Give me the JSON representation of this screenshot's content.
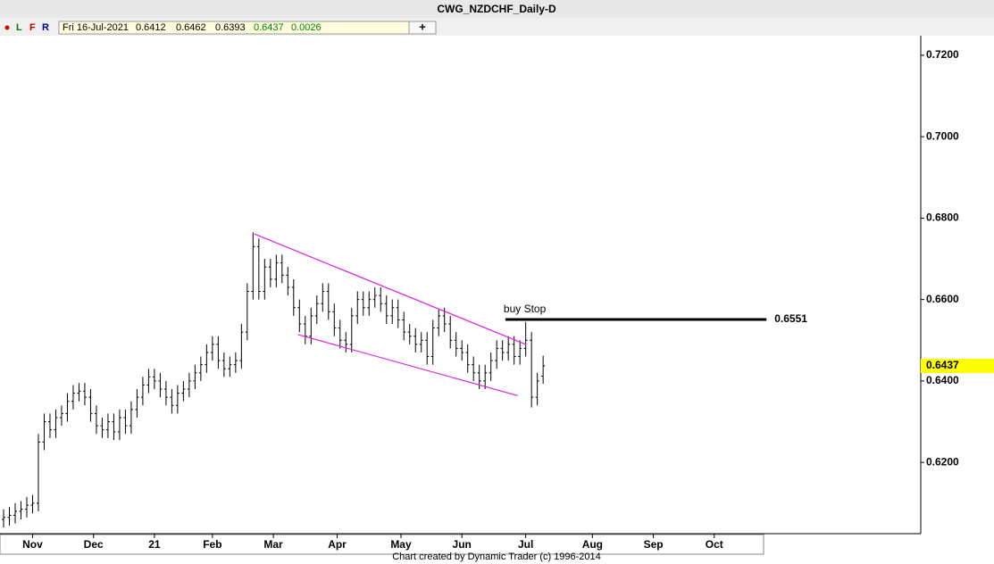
{
  "chart_data": {
    "type": "ohlc",
    "title": "CWG_NZDCHF_Daily-D",
    "toolbar": [
      "L",
      "F",
      "R"
    ],
    "add_button": "+",
    "date": "Fri 16-Jul-2021",
    "change": 0.0026,
    "footer": "Chart created by Dynamic Trader  (c) 1996-2014",
    "color": "#000000",
    "line_color": "#e020e0",
    "xlim": [
      0,
      262
    ],
    "ylim": [
      0.6025,
      0.7248
    ],
    "yticks": [
      {
        "value": 0.72,
        "label": "0.7200"
      },
      {
        "value": 0.7,
        "label": "0.7000"
      },
      {
        "value": 0.68,
        "label": "0.6800"
      },
      {
        "value": 0.66,
        "label": "0.6600"
      },
      {
        "value": 0.64,
        "label": "0.6400"
      },
      {
        "value": 0.62,
        "label": "0.6200"
      }
    ],
    "xticks": [
      {
        "value": 10,
        "label": "Nov"
      },
      {
        "value": 31,
        "label": "Dec"
      },
      {
        "value": 52,
        "label": "21"
      },
      {
        "value": 72,
        "label": "Feb"
      },
      {
        "value": 93,
        "label": "Mar"
      },
      {
        "value": 115,
        "label": "Apr"
      },
      {
        "value": 137,
        "label": "May"
      },
      {
        "value": 158,
        "label": "Jun"
      },
      {
        "value": 180,
        "label": "Jul"
      },
      {
        "value": 203,
        "label": "Aug"
      },
      {
        "value": 224,
        "label": "Sep"
      },
      {
        "value": 245,
        "label": "Oct"
      }
    ],
    "x": [
      0,
      2,
      4,
      6,
      8,
      10,
      12,
      14,
      16,
      18,
      20,
      22,
      24,
      26,
      28,
      30,
      32,
      34,
      36,
      38,
      40,
      42,
      44,
      46,
      48,
      50,
      52,
      54,
      56,
      58,
      60,
      62,
      64,
      66,
      68,
      70,
      72,
      74,
      76,
      78,
      80,
      82,
      84,
      86,
      88,
      90,
      92,
      94,
      96,
      98,
      100,
      102,
      104,
      106,
      108,
      110,
      112,
      114,
      116,
      118,
      120,
      122,
      124,
      126,
      128,
      130,
      132,
      134,
      136,
      138,
      140,
      142,
      144,
      146,
      148,
      150,
      152,
      154,
      156,
      158,
      160,
      162,
      164,
      166,
      168,
      170,
      172,
      174,
      176,
      178,
      180,
      182,
      184,
      186
    ],
    "bars": [
      [
        0.606,
        0.6085,
        0.604,
        0.6065
      ],
      [
        0.6065,
        0.609,
        0.6045,
        0.607
      ],
      [
        0.607,
        0.61,
        0.605,
        0.608
      ],
      [
        0.608,
        0.6105,
        0.606,
        0.6085
      ],
      [
        0.6085,
        0.6115,
        0.6065,
        0.6095
      ],
      [
        0.6095,
        0.612,
        0.6075,
        0.61
      ],
      [
        0.61,
        0.627,
        0.608,
        0.625
      ],
      [
        0.625,
        0.632,
        0.623,
        0.63
      ],
      [
        0.63,
        0.632,
        0.626,
        0.628
      ],
      [
        0.628,
        0.633,
        0.626,
        0.631
      ],
      [
        0.631,
        0.634,
        0.629,
        0.632
      ],
      [
        0.632,
        0.637,
        0.63,
        0.635
      ],
      [
        0.635,
        0.639,
        0.633,
        0.637
      ],
      [
        0.637,
        0.6395,
        0.635,
        0.6375
      ],
      [
        0.6375,
        0.6395,
        0.634,
        0.636
      ],
      [
        0.636,
        0.638,
        0.63,
        0.632
      ],
      [
        0.632,
        0.634,
        0.627,
        0.629
      ],
      [
        0.629,
        0.631,
        0.626,
        0.628
      ],
      [
        0.628,
        0.632,
        0.626,
        0.63
      ],
      [
        0.63,
        0.632,
        0.6255,
        0.6275
      ],
      [
        0.6275,
        0.633,
        0.6255,
        0.631
      ],
      [
        0.631,
        0.633,
        0.627,
        0.629
      ],
      [
        0.629,
        0.635,
        0.627,
        0.633
      ],
      [
        0.633,
        0.638,
        0.631,
        0.636
      ],
      [
        0.636,
        0.641,
        0.634,
        0.639
      ],
      [
        0.639,
        0.643,
        0.637,
        0.641
      ],
      [
        0.641,
        0.643,
        0.638,
        0.64
      ],
      [
        0.64,
        0.642,
        0.636,
        0.638
      ],
      [
        0.638,
        0.64,
        0.634,
        0.636
      ],
      [
        0.636,
        0.638,
        0.632,
        0.634
      ],
      [
        0.634,
        0.639,
        0.632,
        0.637
      ],
      [
        0.637,
        0.64,
        0.635,
        0.638
      ],
      [
        0.638,
        0.642,
        0.636,
        0.64
      ],
      [
        0.64,
        0.644,
        0.638,
        0.642
      ],
      [
        0.642,
        0.646,
        0.64,
        0.644
      ],
      [
        0.644,
        0.649,
        0.642,
        0.647
      ],
      [
        0.647,
        0.651,
        0.645,
        0.649
      ],
      [
        0.649,
        0.651,
        0.643,
        0.645
      ],
      [
        0.645,
        0.647,
        0.641,
        0.643
      ],
      [
        0.643,
        0.646,
        0.641,
        0.644
      ],
      [
        0.644,
        0.647,
        0.642,
        0.645
      ],
      [
        0.645,
        0.654,
        0.643,
        0.652
      ],
      [
        0.652,
        0.664,
        0.65,
        0.662
      ],
      [
        0.662,
        0.6765,
        0.66,
        0.673
      ],
      [
        0.673,
        0.675,
        0.66,
        0.662
      ],
      [
        0.662,
        0.67,
        0.66,
        0.668
      ],
      [
        0.668,
        0.67,
        0.663,
        0.665
      ],
      [
        0.665,
        0.671,
        0.663,
        0.669
      ],
      [
        0.669,
        0.671,
        0.664,
        0.666
      ],
      [
        0.666,
        0.668,
        0.661,
        0.663
      ],
      [
        0.663,
        0.665,
        0.656,
        0.658
      ],
      [
        0.658,
        0.66,
        0.652,
        0.654
      ],
      [
        0.654,
        0.656,
        0.649,
        0.651
      ],
      [
        0.651,
        0.658,
        0.649,
        0.656
      ],
      [
        0.656,
        0.661,
        0.654,
        0.659
      ],
      [
        0.659,
        0.664,
        0.657,
        0.662
      ],
      [
        0.662,
        0.664,
        0.655,
        0.657
      ],
      [
        0.657,
        0.659,
        0.651,
        0.653
      ],
      [
        0.653,
        0.655,
        0.648,
        0.65
      ],
      [
        0.65,
        0.652,
        0.647,
        0.649
      ],
      [
        0.649,
        0.658,
        0.647,
        0.656
      ],
      [
        0.656,
        0.662,
        0.654,
        0.66
      ],
      [
        0.66,
        0.662,
        0.656,
        0.658
      ],
      [
        0.658,
        0.662,
        0.656,
        0.66
      ],
      [
        0.66,
        0.663,
        0.658,
        0.661
      ],
      [
        0.661,
        0.663,
        0.657,
        0.659
      ],
      [
        0.659,
        0.661,
        0.654,
        0.656
      ],
      [
        0.656,
        0.66,
        0.654,
        0.658
      ],
      [
        0.658,
        0.66,
        0.653,
        0.655
      ],
      [
        0.655,
        0.657,
        0.65,
        0.652
      ],
      [
        0.652,
        0.654,
        0.649,
        0.651
      ],
      [
        0.651,
        0.653,
        0.647,
        0.649
      ],
      [
        0.649,
        0.652,
        0.647,
        0.65
      ],
      [
        0.65,
        0.652,
        0.644,
        0.646
      ],
      [
        0.646,
        0.655,
        0.644,
        0.653
      ],
      [
        0.653,
        0.6575,
        0.651,
        0.656
      ],
      [
        0.656,
        0.658,
        0.652,
        0.654
      ],
      [
        0.654,
        0.656,
        0.648,
        0.65
      ],
      [
        0.65,
        0.652,
        0.646,
        0.648
      ],
      [
        0.648,
        0.65,
        0.645,
        0.647
      ],
      [
        0.647,
        0.649,
        0.642,
        0.644
      ],
      [
        0.644,
        0.646,
        0.64,
        0.642
      ],
      [
        0.642,
        0.644,
        0.638,
        0.64
      ],
      [
        0.64,
        0.644,
        0.638,
        0.642
      ],
      [
        0.642,
        0.647,
        0.64,
        0.645
      ],
      [
        0.645,
        0.65,
        0.643,
        0.648
      ],
      [
        0.648,
        0.65,
        0.645,
        0.647
      ],
      [
        0.647,
        0.651,
        0.645,
        0.649
      ],
      [
        0.649,
        0.651,
        0.644,
        0.646
      ],
      [
        0.646,
        0.65,
        0.644,
        0.648
      ],
      [
        0.648,
        0.6545,
        0.646,
        0.65
      ],
      [
        0.65,
        0.652,
        0.6335,
        0.636
      ],
      [
        0.636,
        0.642,
        0.634,
        0.64
      ],
      [
        0.6412,
        0.6462,
        0.6393,
        0.6437
      ]
    ],
    "trendlines": [
      {
        "x": [
          86.5,
          180.3
        ],
        "y": [
          0.6761,
          0.6489
        ]
      },
      {
        "x": [
          101.5,
          177.2
        ],
        "y": [
          0.6514,
          0.6364
        ]
      }
    ],
    "stop": {
      "label": "buy Stop",
      "value": 0.6551,
      "x": [
        173,
        263
      ]
    }
  }
}
